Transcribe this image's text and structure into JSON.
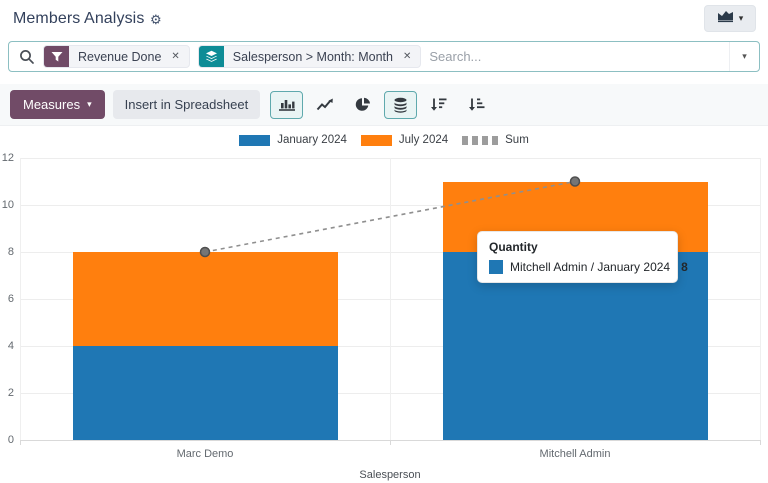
{
  "header": {
    "title": "Members Analysis",
    "gear_icon": "⚙",
    "view_switcher_caret": "▾"
  },
  "search": {
    "placeholder": "Search...",
    "facets": [
      {
        "icon": "filter",
        "label": "Revenue Done",
        "remove": "✕"
      },
      {
        "icon": "group-by",
        "label": "Salesperson > Month: Month",
        "remove": "✕"
      }
    ],
    "dropdown_caret": "▾"
  },
  "toolbar": {
    "measures_label": "Measures",
    "measures_caret": "▾",
    "insert_spreadsheet_label": "Insert in Spreadsheet",
    "chart_buttons": [
      "bar-chart",
      "line-chart",
      "pie-chart",
      "stacked",
      "sort-desc",
      "sort-asc"
    ],
    "active_buttons": [
      "bar-chart",
      "stacked"
    ]
  },
  "tooltip": {
    "title": "Quantity",
    "series_label": "Mitchell Admin / January 2024",
    "value": "8",
    "swatch_color": "#1f77b4"
  },
  "chart_data": {
    "type": "bar",
    "stacked": true,
    "categories": [
      "Marc Demo",
      "Mitchell Admin"
    ],
    "series": [
      {
        "name": "January 2024",
        "type": "bar",
        "color": "#1f77b4",
        "values": [
          4,
          8
        ]
      },
      {
        "name": "July 2024",
        "type": "bar",
        "color": "#ff7f0e",
        "values": [
          4,
          3
        ]
      },
      {
        "name": "Sum",
        "type": "line",
        "style": "dashed",
        "color": "#8f8f8f",
        "values": [
          8,
          11
        ]
      }
    ],
    "xlabel": "Salesperson",
    "ylabel": "",
    "ylim": [
      0,
      12
    ],
    "yticks": [
      0,
      2,
      4,
      6,
      8,
      10,
      12
    ],
    "legend_position": "top",
    "grid": true
  },
  "colors": {
    "accent_purple": "#714b67",
    "facet_teal": "#0e8c96",
    "active_button_border": "#5fa9ad",
    "searchbar_border": "#8cbfc2",
    "sum_dot_fill": "#757575",
    "sum_dot_border": "#4f4f4f"
  }
}
